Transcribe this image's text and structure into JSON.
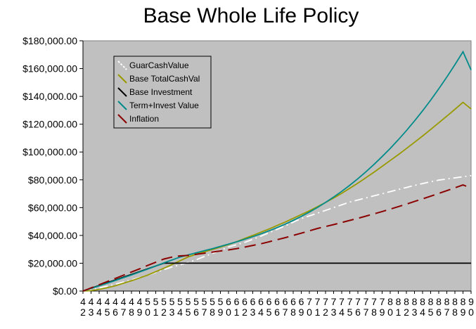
{
  "chart_data": {
    "type": "line",
    "title": "Base Whole Life Policy",
    "xlabel": "",
    "ylabel": "",
    "x": [
      42,
      43,
      44,
      45,
      46,
      47,
      48,
      49,
      50,
      51,
      52,
      53,
      54,
      55,
      56,
      57,
      58,
      59,
      60,
      61,
      62,
      63,
      64,
      65,
      66,
      67,
      68,
      69,
      70,
      71,
      72,
      73,
      74,
      75,
      76,
      77,
      78,
      79,
      80,
      81,
      82,
      83,
      84,
      85,
      86,
      87,
      88,
      89,
      90
    ],
    "x_tick_labels": [
      "42",
      "43",
      "44",
      "45",
      "46",
      "47",
      "48",
      "49",
      "50",
      "51",
      "52",
      "53",
      "54",
      "55",
      "56",
      "57",
      "58",
      "59",
      "60",
      "61",
      "62",
      "63",
      "64",
      "65",
      "66",
      "67",
      "68",
      "69",
      "70",
      "71",
      "72",
      "73",
      "74",
      "75",
      "76",
      "77",
      "78",
      "79",
      "80",
      "81",
      "82",
      "83",
      "84",
      "85",
      "86",
      "87",
      "88",
      "89",
      "90"
    ],
    "ylim": [
      0,
      180000
    ],
    "y_ticks": [
      0,
      20000,
      40000,
      60000,
      80000,
      100000,
      120000,
      140000,
      160000,
      180000
    ],
    "y_tick_labels": [
      "$0.00",
      "$20,000.00",
      "$40,000.00",
      "$60,000.00",
      "$80,000.00",
      "$100,000.00",
      "$120,000.00",
      "$140,000.00",
      "$160,000.00",
      "$180,000.00"
    ],
    "grid": false,
    "legend_position": "top-left",
    "series": [
      {
        "name": "GuarCashValue",
        "color": "#ffffff",
        "style": "dashdot",
        "values": [
          0,
          1000,
          2200,
          3500,
          4900,
          6400,
          8000,
          9700,
          11500,
          13400,
          15400,
          17300,
          18800,
          20500,
          22500,
          24800,
          27000,
          29300,
          31700,
          33300,
          35000,
          37200,
          39500,
          41900,
          44400,
          46900,
          49500,
          52200,
          54000,
          56000,
          58000,
          60000,
          62000,
          64000,
          65500,
          67000,
          68500,
          70000,
          71500,
          73000,
          74500,
          76000,
          77300,
          78600,
          79800,
          80600,
          81400,
          82200,
          83000
        ]
      },
      {
        "name": "Base TotalCashVal",
        "color": "#999900",
        "style": "solid",
        "values": [
          0,
          300,
          1200,
          2400,
          3800,
          5600,
          7400,
          9400,
          11500,
          13900,
          16400,
          19000,
          21800,
          24500,
          26500,
          28200,
          29900,
          31600,
          33400,
          35500,
          37800,
          40000,
          42300,
          44600,
          47100,
          49600,
          52300,
          55000,
          57700,
          60600,
          63700,
          66900,
          70300,
          73900,
          77600,
          81500,
          85500,
          89700,
          93900,
          98100,
          102500,
          107000,
          111500,
          116200,
          121000,
          125800,
          130700,
          135700,
          131000
        ]
      },
      {
        "name": "Base Investment",
        "color": "#000000",
        "style": "solid",
        "values": [
          0,
          2000,
          4000,
          6000,
          8000,
          10000,
          12000,
          14000,
          16000,
          18000,
          20000,
          20000,
          20000,
          20000,
          20000,
          20000,
          20000,
          20000,
          20000,
          20000,
          20000,
          20000,
          20000,
          20000,
          20000,
          20000,
          20000,
          20000,
          20000,
          20000,
          20000,
          20000,
          20000,
          20000,
          20000,
          20000,
          20000,
          20000,
          20000,
          20000,
          20000,
          20000,
          20000,
          20000,
          20000,
          20000,
          20000,
          20000,
          20000
        ]
      },
      {
        "name": "Term+Invest Value",
        "color": "#008b8b",
        "style": "solid",
        "values": [
          0,
          1800,
          3700,
          5600,
          7600,
          9600,
          11600,
          13700,
          15800,
          18000,
          20200,
          22300,
          24400,
          26000,
          27500,
          29000,
          30500,
          32100,
          33700,
          35400,
          37200,
          39100,
          41100,
          43300,
          45600,
          48100,
          50800,
          53700,
          56800,
          60100,
          63700,
          67600,
          71700,
          76100,
          80800,
          85800,
          91100,
          96700,
          102600,
          108800,
          115400,
          122300,
          129600,
          137300,
          145400,
          153900,
          162800,
          172100,
          159000
        ]
      },
      {
        "name": "Inflation",
        "color": "#8b0000",
        "style": "dashed",
        "values": [
          0,
          2200,
          4500,
          6800,
          9100,
          11400,
          13700,
          16000,
          18400,
          20700,
          23000,
          24400,
          25300,
          25600,
          26400,
          27200,
          28000,
          28800,
          29600,
          30500,
          31600,
          32800,
          34000,
          35400,
          36900,
          38400,
          40000,
          41600,
          43300,
          45000,
          46400,
          47800,
          49300,
          50800,
          52300,
          53900,
          55500,
          57200,
          58900,
          60700,
          62500,
          64400,
          66300,
          68200,
          70200,
          72200,
          74200,
          76300,
          74000
        ]
      }
    ]
  }
}
